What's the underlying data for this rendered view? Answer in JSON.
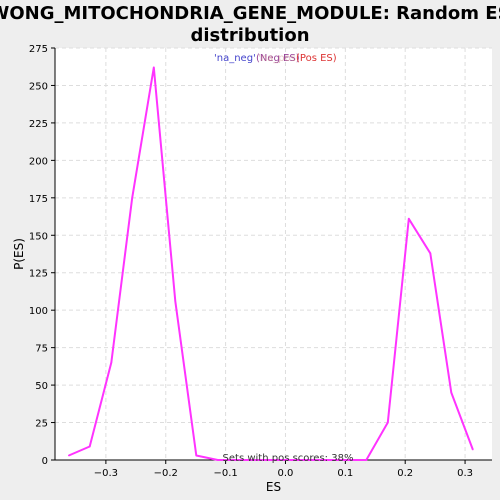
{
  "chart_data": {
    "type": "line",
    "title": "WONG_MITOCHONDRIA_GENE_MODULE: Random ES distribution",
    "title_lines": [
      "WONG_MITOCHONDRIA_GENE_MODULE: Random ES",
      "distribution"
    ],
    "xlabel": "ES",
    "ylabel": "P(ES)",
    "xlim": [
      -0.385,
      0.345
    ],
    "ylim": [
      0,
      275
    ],
    "x_ticks": [
      -0.3,
      -0.2,
      -0.1,
      0.0,
      0.1,
      0.2,
      0.3
    ],
    "x_tick_labels": [
      "−0.3",
      "−0.2",
      "−0.1",
      "0.0",
      "0.1",
      "0.2",
      "0.3"
    ],
    "y_ticks": [
      0,
      25,
      50,
      75,
      100,
      125,
      150,
      175,
      200,
      225,
      250,
      275
    ],
    "y_tick_labels": [
      "0",
      "25",
      "50",
      "75",
      "100",
      "125",
      "150",
      "175",
      "200",
      "225",
      "250",
      "275"
    ],
    "grid": true,
    "legend": {
      "placement": "top-center",
      "items": [
        {
          "label": "'na_neg'",
          "color": "#4444cc"
        },
        {
          "label": "(Neg ES)",
          "color": "#994499"
        },
        {
          "label": "'na_pos'",
          "color": "#cc8888"
        },
        {
          "label": "(Pos ES)",
          "color": "#dd3333"
        }
      ]
    },
    "annotation": "Sets with pos scores: 38%",
    "series": [
      {
        "color": "#ff33ff",
        "x": [
          -0.362,
          -0.327,
          -0.291,
          -0.256,
          -0.22,
          -0.184,
          -0.149,
          -0.113,
          -0.078,
          -0.042,
          -0.007,
          0.029,
          0.064,
          0.1,
          0.135,
          0.171,
          0.206,
          0.242,
          0.277,
          0.313
        ],
        "y": [
          3,
          9,
          65,
          175,
          262,
          106,
          3,
          0,
          0,
          0,
          0,
          0,
          0,
          0,
          0,
          25,
          161,
          138,
          45,
          7
        ]
      }
    ]
  },
  "colors": {
    "background": "#eeeeee",
    "plot_background": "#ffffff",
    "grid": "#dddddd",
    "axis": "#000000",
    "line": "#ff33ff"
  }
}
